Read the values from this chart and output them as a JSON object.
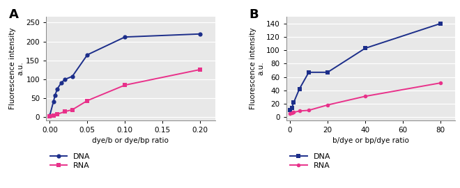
{
  "panel_A": {
    "label": "A",
    "dna_x": [
      0.0,
      0.005,
      0.007,
      0.01,
      0.015,
      0.02,
      0.03,
      0.05,
      0.1,
      0.2
    ],
    "dna_y": [
      5,
      42,
      58,
      75,
      90,
      100,
      108,
      165,
      212,
      220
    ],
    "rna_x": [
      0.0,
      0.005,
      0.01,
      0.02,
      0.03,
      0.05,
      0.1,
      0.2
    ],
    "rna_y": [
      2,
      5,
      8,
      15,
      20,
      44,
      85,
      126
    ],
    "xlabel": "dye/b or dye/bp ratio",
    "ylabel1": "Fluorescence intensity",
    "ylabel2": "a.u.",
    "xlim": [
      -0.005,
      0.22
    ],
    "ylim": [
      -8,
      265
    ],
    "xticks": [
      0.0,
      0.05,
      0.1,
      0.15,
      0.2
    ],
    "yticks": [
      0,
      50,
      100,
      150,
      200,
      250
    ]
  },
  "panel_B": {
    "label": "B",
    "dna_x": [
      0,
      1,
      2,
      5,
      10,
      20,
      40,
      80
    ],
    "dna_y": [
      10,
      14,
      22,
      42,
      67,
      67,
      103,
      140
    ],
    "rna_x": [
      0,
      1,
      2,
      5,
      10,
      20,
      40,
      80
    ],
    "rna_y": [
      5,
      6,
      7,
      9,
      10,
      18,
      31,
      51
    ],
    "xlabel": "b/dye or bp/dye ratio",
    "ylabel1": "Fluorescence intensity",
    "ylabel2": "a.u.",
    "xlim": [
      -2,
      88
    ],
    "ylim": [
      -5,
      150
    ],
    "xticks": [
      0,
      20,
      40,
      60,
      80
    ],
    "yticks": [
      0,
      20,
      40,
      60,
      80,
      100,
      120,
      140
    ]
  },
  "dna_color": "#1c2e8a",
  "rna_color": "#e8318a",
  "dna_label": "DNA",
  "rna_label": "RNA",
  "bg_color": "#e8e8e8"
}
